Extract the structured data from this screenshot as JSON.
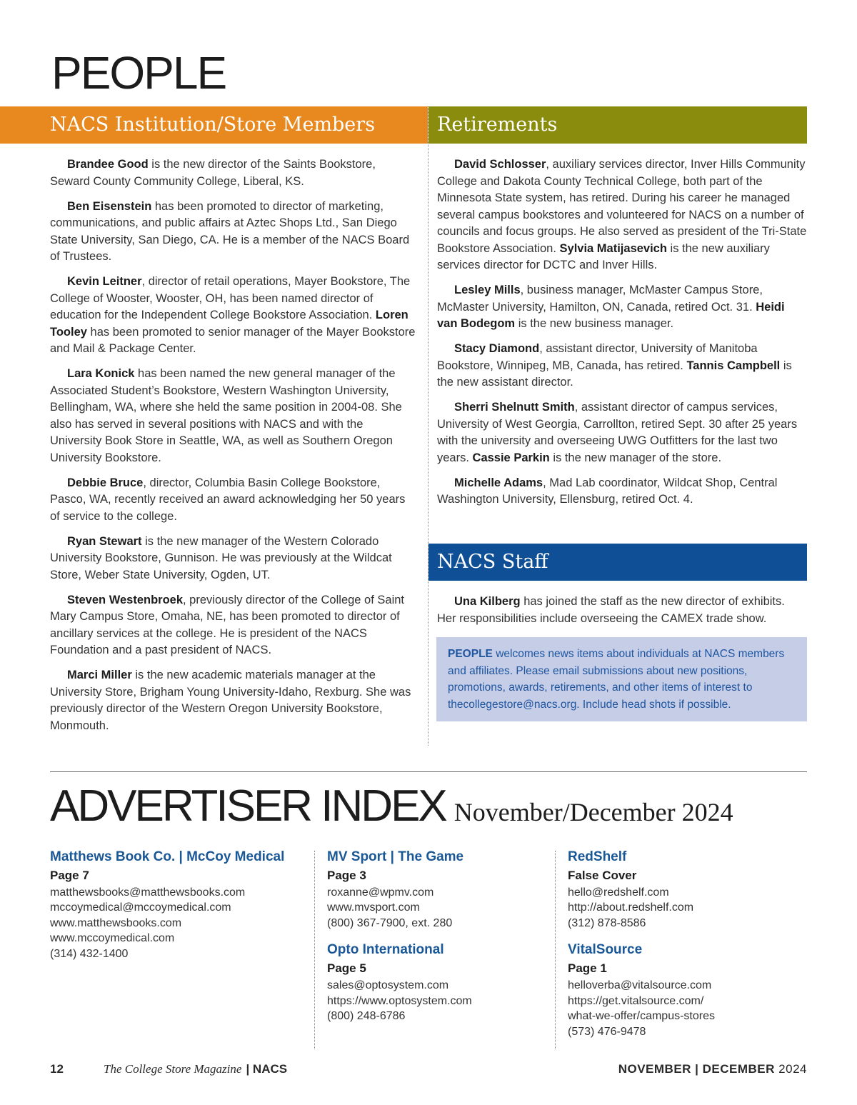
{
  "title": "PEOPLE",
  "colors": {
    "members_band": "#E8891F",
    "retirements_band": "#8A8C0E",
    "staff_band": "#0F4F96",
    "note_bg": "#C6CDE6",
    "advertiser_name": "#1A5796"
  },
  "members": {
    "heading": "NACS Institution/Store Members",
    "paragraphs": [
      [
        {
          "b": "Brandee Good"
        },
        {
          "t": " is the new director of the Saints Bookstore, Seward County Community College, Liberal, KS."
        }
      ],
      [
        {
          "b": "Ben Eisenstein"
        },
        {
          "t": " has been promoted to director of marketing, communications, and public affairs at Aztec Shops Ltd., San Diego State University, San Diego, CA. He is a member of the NACS Board of Trustees."
        }
      ],
      [
        {
          "b": "Kevin Leitner"
        },
        {
          "t": ", director of retail operations, Mayer Bookstore, The College of Wooster, Wooster, OH, has been named director of education for the Independent College Bookstore Association. "
        },
        {
          "b": "Loren Tooley"
        },
        {
          "t": " has been promoted to senior manager of the Mayer Bookstore and Mail & Package Center."
        }
      ],
      [
        {
          "b": "Lara Konick"
        },
        {
          "t": " has been named the new general manager of the Associated Student’s Bookstore, Western Washington University, Bellingham, WA, where she held the same position in 2004-08. She also has served in several positions with NACS and with the University Book Store in Seattle, WA, as well as Southern Oregon University Bookstore."
        }
      ],
      [
        {
          "b": "Debbie Bruce"
        },
        {
          "t": ", director, Columbia Basin College Bookstore, Pasco, WA, recently received an award acknowledging her 50 years of service to the college."
        }
      ],
      [
        {
          "b": "Ryan Stewart"
        },
        {
          "t": " is the new manager of the Western Colorado University Bookstore, Gunnison. He was previously at the Wildcat Store, Weber State University, Ogden, UT."
        }
      ],
      [
        {
          "b": "Steven Westenbroek"
        },
        {
          "t": ", previously director of the College of Saint Mary Campus Store, Omaha, NE, has been promoted to director of ancillary services at the college. He is president of the NACS Foundation and a past president of NACS."
        }
      ],
      [
        {
          "b": "Marci Miller"
        },
        {
          "t": " is the new academic materials manager at the University Store, Brigham Young University-Idaho, Rexburg. She was previously director of the Western Oregon University Bookstore, Monmouth."
        }
      ]
    ]
  },
  "retirements": {
    "heading": "Retirements",
    "paragraphs": [
      [
        {
          "b": "David Schlosser"
        },
        {
          "t": ", auxiliary services director, Inver Hills Community College and Dakota County Technical College, both part of the Minnesota State system, has retired. During his career he managed several campus bookstores and volunteered for NACS on a number of councils and focus groups. He also served as president of the Tri-State Bookstore Association. "
        },
        {
          "b": "Sylvia Matijasevich"
        },
        {
          "t": " is the new auxiliary services director for DCTC and Inver Hills."
        }
      ],
      [
        {
          "b": "Lesley Mills"
        },
        {
          "t": ", business manager, McMaster Campus Store, McMaster University, Hamilton, ON, Canada, retired Oct. 31. "
        },
        {
          "b": "Heidi van Bodegom"
        },
        {
          "t": " is the new business manager."
        }
      ],
      [
        {
          "b": "Stacy Diamond"
        },
        {
          "t": ", assistant director, University of Manitoba Bookstore, Winnipeg, MB, Canada, has retired. "
        },
        {
          "b": "Tannis Campbell"
        },
        {
          "t": " is the new assistant director."
        }
      ],
      [
        {
          "b": "Sherri Shelnutt Smith"
        },
        {
          "t": ", assistant director of campus services, University of West Georgia, Carrollton, retired Sept. 30 after 25 years with the university and overseeing UWG Outfitters for the last two years. "
        },
        {
          "b": "Cassie Parkin"
        },
        {
          "t": " is the new manager of the store."
        }
      ],
      [
        {
          "b": "Michelle Adams"
        },
        {
          "t": ", Mad Lab coordinator, Wildcat Shop, Central Washington University, Ellensburg, retired Oct. 4."
        }
      ]
    ]
  },
  "staff": {
    "heading": "NACS Staff",
    "paragraphs": [
      [
        {
          "b": "Una Kilberg"
        },
        {
          "t": " has joined the staff as the new director of exhibits. Her responsibilities include overseeing the CAMEX trade show."
        }
      ]
    ]
  },
  "note": {
    "lead": "PEOPLE",
    "text": " welcomes news items about individuals at NACS members and affiliates. Please email submissions about new positions, promotions, awards, retirements, and other items of interest to thecollegestore@nacs.org. Include head shots if possible."
  },
  "advertiser_index": {
    "title": "ADVERTISER INDEX",
    "issue": "November/December 2024",
    "columns": [
      [
        {
          "name": "Matthews Book Co. | McCoy Medical",
          "page": "Page 7",
          "lines": [
            "matthewsbooks@matthewsbooks.com",
            "mccoymedical@mccoymedical.com",
            "www.matthewsbooks.com",
            "www.mccoymedical.com",
            "(314) 432-1400"
          ]
        }
      ],
      [
        {
          "name": "MV Sport | The Game",
          "page": "Page 3",
          "lines": [
            "roxanne@wpmv.com",
            "www.mvsport.com",
            "(800) 367-7900, ext. 280"
          ]
        },
        {
          "name": "Opto International",
          "page": "Page 5",
          "lines": [
            "sales@optosystem.com",
            "https://www.optosystem.com",
            "(800) 248-6786"
          ]
        }
      ],
      [
        {
          "name": "RedShelf",
          "page": "False Cover",
          "lines": [
            "hello@redshelf.com",
            "http://about.redshelf.com",
            "(312) 878-8586"
          ]
        },
        {
          "name": "VitalSource",
          "page": "Page 1",
          "lines": [
            "helloverba@vitalsource.com",
            "https://get.vitalsource.com/",
            "what-we-offer/campus-stores",
            "(573) 476-9478"
          ]
        }
      ]
    ]
  },
  "footer": {
    "page_number": "12",
    "magazine": "The College Store Magazine",
    "org": "NACS",
    "month1": "NOVEMBER",
    "month2": "DECEMBER",
    "year": "2024"
  }
}
